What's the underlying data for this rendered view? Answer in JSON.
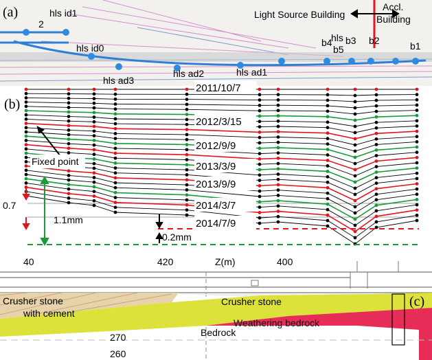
{
  "panel_a": {
    "label": "(a)",
    "labels": [
      {
        "text": "hls id1"
      },
      {
        "text": "2"
      },
      {
        "text": "hls id0"
      },
      {
        "text": "hls"
      },
      {
        "text": "b5"
      },
      {
        "text": "b4"
      },
      {
        "text": "b3"
      },
      {
        "text": "b2"
      },
      {
        "text": "b1"
      },
      {
        "text": "hls ad2"
      },
      {
        "text": "hls ad1"
      },
      {
        "text": "hls ad3"
      }
    ],
    "light_source_building": "Light Source Building",
    "accl_building": [
      "Accl.",
      "Building"
    ]
  },
  "panel_b": {
    "label": "(b)",
    "dates": [
      "2011/10/7",
      "2012/3/15",
      "2012/9/9",
      "2013/3/9",
      "2013/9/9",
      "2014/3/7",
      "2014/7/9"
    ],
    "fixed_point": "Fixed point",
    "left_value": "0.7",
    "diff_1": "1.1mm",
    "diff_2": "0.2mm",
    "axis_labels": [
      "40",
      "420",
      "Z(m)",
      "400"
    ]
  },
  "panel_c": {
    "label": "(c)",
    "crusher_stone_cement": [
      "Crusher stone",
      "with cement"
    ],
    "crusher_stone": "Crusher stone",
    "weathering_bedrock": "Weathering bedrock",
    "bedrock": "Bedrock",
    "elevations": [
      "270",
      "260"
    ]
  }
}
